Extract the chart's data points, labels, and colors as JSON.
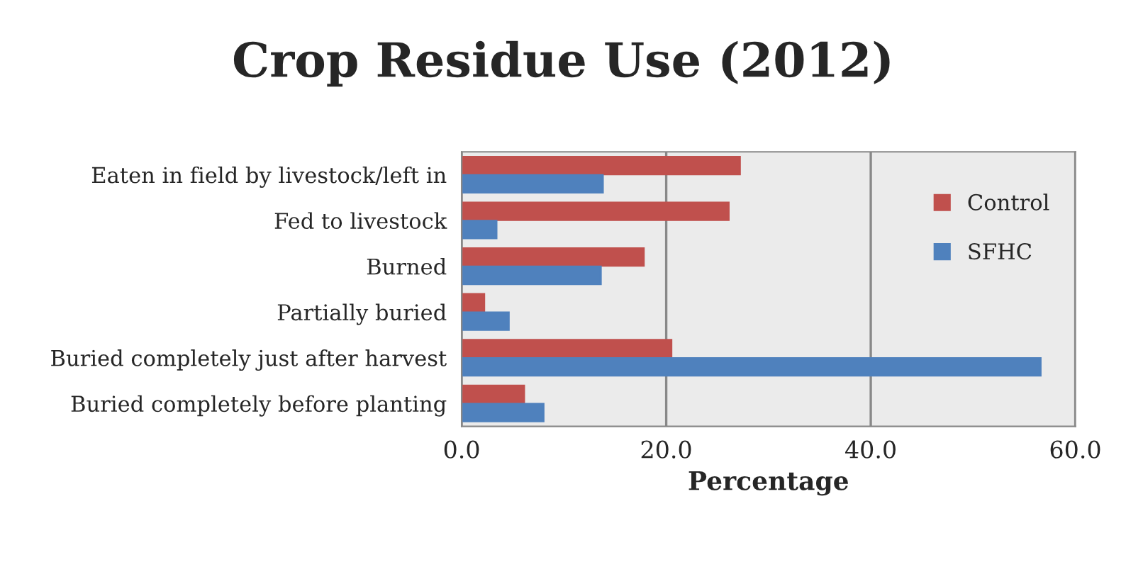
{
  "chart_data": {
    "type": "bar",
    "orientation": "horizontal",
    "title": "Crop Residue Use (2012)",
    "xlabel": "Percentage",
    "categories": [
      "Eaten in field by livestock/left in",
      "Fed to livestock",
      "Burned",
      "Partially buried",
      "Buried completely just after harvest",
      "Buried completely before planting"
    ],
    "series": [
      {
        "name": "Control",
        "color": "#c0504d",
        "values": [
          27.2,
          26.1,
          17.8,
          2.2,
          20.5,
          6.1
        ]
      },
      {
        "name": "SFHC",
        "color": "#4f81bd",
        "values": [
          13.8,
          3.4,
          13.6,
          4.6,
          56.6,
          8.0
        ]
      }
    ],
    "xlim": [
      0,
      60
    ],
    "xticks": [
      {
        "value": 0,
        "label": "0.0"
      },
      {
        "value": 20,
        "label": "20.0"
      },
      {
        "value": 40,
        "label": "40.0"
      },
      {
        "value": 60,
        "label": "60.0"
      }
    ],
    "grid": "x",
    "legend": "right"
  }
}
